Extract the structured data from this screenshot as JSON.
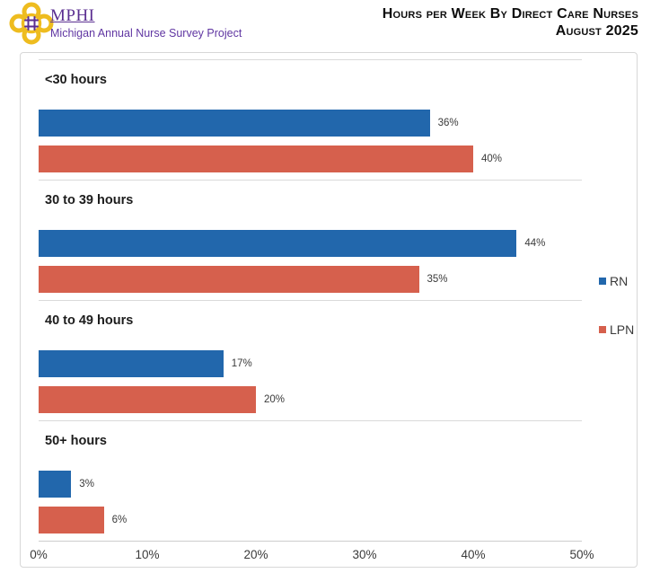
{
  "header": {
    "brand": {
      "org_abbr": "MPHI",
      "org_subtitle": "Michigan Annual Nurse Survey Project",
      "brand_purple": "#5b2f91",
      "brand_gold": "#eebc1f"
    },
    "title_line1": "Hours per Week By Direct Care Nurses",
    "title_line2": "August 2025"
  },
  "chart_data": {
    "type": "bar",
    "orientation": "horizontal",
    "title": "Hours per Week By Direct Care Nurses",
    "subtitle": "August 2025",
    "categories": [
      "<30 hours",
      "30 to 39 hours",
      "40 to 49 hours",
      "50+ hours"
    ],
    "series": [
      {
        "name": "RN",
        "color": "#2267ac",
        "values": [
          36,
          44,
          17,
          3
        ]
      },
      {
        "name": "LPN",
        "color": "#d6604d",
        "values": [
          40,
          35,
          20,
          6
        ]
      }
    ],
    "value_suffix": "%",
    "xlim": [
      0,
      50
    ],
    "x_ticks": [
      "0%",
      "10%",
      "20%",
      "30%",
      "40%",
      "50%"
    ],
    "xlabel": "",
    "ylabel": "",
    "legend_position": "right-middle",
    "grid": "horizontal category separator lines, bottom axis line"
  }
}
